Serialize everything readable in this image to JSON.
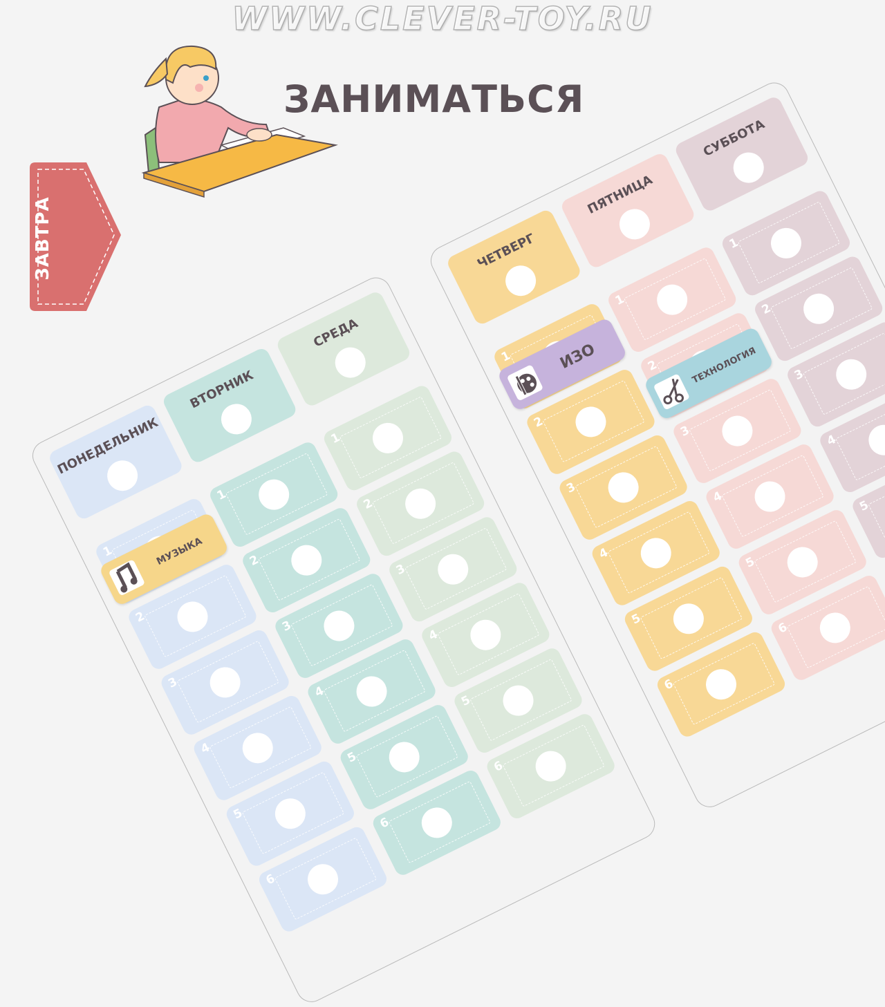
{
  "title": "ЗАНИМАТЬСЯ",
  "tab": {
    "label": "ЗАВТРА",
    "color": "#d9706f"
  },
  "watermark": "WWW.CLEVER-TOY.RU",
  "rows": [
    "1",
    "2",
    "3",
    "4",
    "5",
    "6"
  ],
  "boards": [
    {
      "days": [
        {
          "label": "ПОНЕДЕЛЬНИК",
          "color": "#dbe6f6"
        },
        {
          "label": "ВТОРНИК",
          "color": "#c5e4df"
        },
        {
          "label": "СРЕДА",
          "color": "#dde9dc"
        }
      ]
    },
    {
      "days": [
        {
          "label": "ЧЕТВЕРГ",
          "color": "#f8d896"
        },
        {
          "label": "ПЯТНИЦА",
          "color": "#f6d9d6"
        },
        {
          "label": "СУББОТА",
          "color": "#e3d3d8"
        }
      ]
    }
  ],
  "tags": [
    {
      "label": "ИЗО",
      "icon": "palette-icon",
      "color": "#c6b3dc"
    },
    {
      "label": "ТЕХНОЛОГИЯ",
      "icon": "scissors-icon",
      "color": "#a9d5de"
    },
    {
      "label": "МУЗЫКА",
      "icon": "music-note-icon",
      "color": "#f6d68a"
    }
  ]
}
